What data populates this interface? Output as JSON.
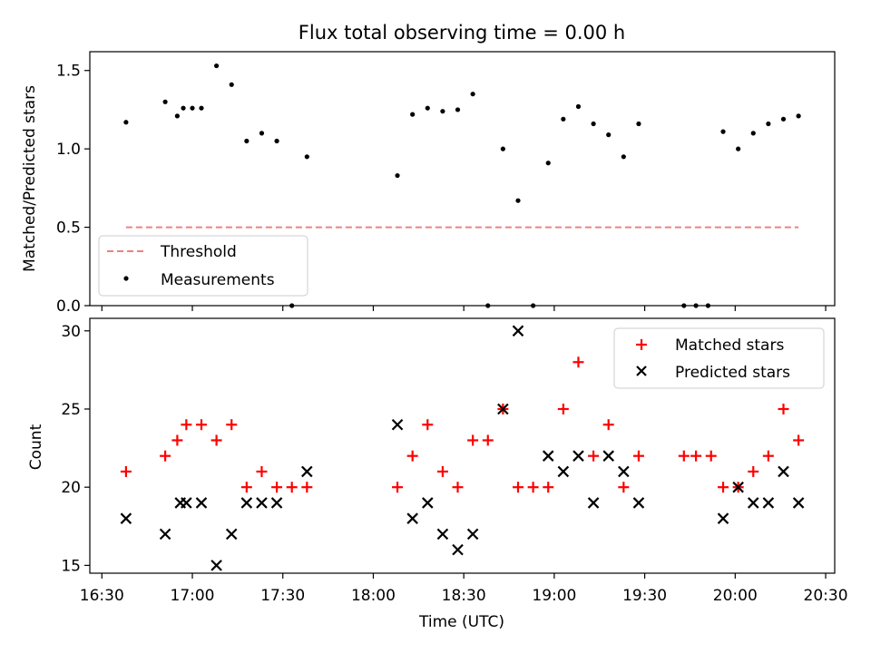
{
  "figure": {
    "title": "Flux total observing time = 0.00 h"
  },
  "colors": {
    "threshold": "#f08080",
    "measurement": "#000000",
    "matched": "#ff0000",
    "predicted": "#000000",
    "axes": "#000000",
    "legend_border": "#cccccc"
  },
  "chart_data": [
    {
      "type": "scatter",
      "title": "Flux total observing time = 0.00 h",
      "xlabel": "",
      "ylabel": "Matched/Predicted stars",
      "xlim": [
        "16:26",
        "20:33"
      ],
      "ylim": [
        0,
        1.62
      ],
      "yticks": [
        0.0,
        0.5,
        1.0,
        1.5
      ],
      "ytick_labels": [
        "0.0",
        "0.5",
        "1.0",
        "1.5"
      ],
      "xticks": [
        "16:30",
        "17:00",
        "17:30",
        "18:00",
        "18:30",
        "19:00",
        "19:30",
        "20:00",
        "20:30"
      ],
      "xtick_labels_visible": false,
      "grid": false,
      "legend_position": "lower-left",
      "series": [
        {
          "name": "Threshold",
          "style": "dashed-line",
          "x": [
            "16:38",
            "20:21"
          ],
          "y": [
            0.5,
            0.5
          ]
        },
        {
          "name": "Measurements",
          "style": "dot",
          "x": [
            "16:38",
            "16:51",
            "16:55",
            "16:57",
            "17:00",
            "17:03",
            "17:08",
            "17:13",
            "17:18",
            "17:23",
            "17:28",
            "17:33",
            "17:38",
            "18:08",
            "18:13",
            "18:18",
            "18:23",
            "18:28",
            "18:33",
            "18:38",
            "18:43",
            "18:48",
            "18:53",
            "18:58",
            "19:03",
            "19:08",
            "19:13",
            "19:18",
            "19:23",
            "19:28",
            "19:43",
            "19:47",
            "19:51",
            "19:56",
            "20:01",
            "20:06",
            "20:11",
            "20:16",
            "20:21"
          ],
          "y": [
            1.17,
            1.3,
            1.21,
            1.26,
            1.26,
            1.26,
            1.53,
            1.41,
            1.05,
            1.1,
            1.05,
            0.0,
            0.95,
            0.83,
            1.22,
            1.26,
            1.24,
            1.25,
            1.35,
            0.0,
            1.0,
            0.67,
            0.0,
            0.91,
            1.19,
            1.27,
            1.16,
            1.09,
            0.95,
            1.16,
            0.0,
            0.0,
            0.0,
            1.11,
            1.0,
            1.1,
            1.16,
            1.19,
            1.21
          ]
        }
      ]
    },
    {
      "type": "scatter",
      "title": "",
      "xlabel": "Time (UTC)",
      "ylabel": "Count",
      "xlim": [
        "16:26",
        "20:33"
      ],
      "ylim": [
        14.5,
        30.8
      ],
      "yticks": [
        15,
        20,
        25,
        30
      ],
      "ytick_labels": [
        "15",
        "20",
        "25",
        "30"
      ],
      "xticks": [
        "16:30",
        "17:00",
        "17:30",
        "18:00",
        "18:30",
        "19:00",
        "19:30",
        "20:00",
        "20:30"
      ],
      "xtick_labels": [
        "16:30",
        "17:00",
        "17:30",
        "18:00",
        "18:30",
        "19:00",
        "19:30",
        "20:00",
        "20:30"
      ],
      "grid": false,
      "legend_position": "upper-right",
      "series": [
        {
          "name": "Matched stars",
          "style": "plus",
          "x": [
            "16:38",
            "16:51",
            "16:55",
            "16:58",
            "17:03",
            "17:08",
            "17:13",
            "17:18",
            "17:23",
            "17:28",
            "17:33",
            "17:38",
            "18:08",
            "18:13",
            "18:18",
            "18:23",
            "18:28",
            "18:33",
            "18:38",
            "18:43",
            "18:48",
            "18:53",
            "18:58",
            "19:03",
            "19:08",
            "19:13",
            "19:18",
            "19:23",
            "19:28",
            "19:43",
            "19:47",
            "19:52",
            "19:56",
            "20:01",
            "20:06",
            "20:11",
            "20:16",
            "20:21"
          ],
          "y": [
            21,
            22,
            23,
            24,
            24,
            23,
            24,
            20,
            21,
            20,
            20,
            20,
            20,
            22,
            24,
            21,
            20,
            23,
            23,
            25,
            20,
            20,
            20,
            25,
            28,
            22,
            24,
            20,
            22,
            22,
            22,
            22,
            20,
            20,
            21,
            22,
            25,
            23
          ]
        },
        {
          "name": "Predicted stars",
          "style": "x",
          "x": [
            "16:38",
            "16:51",
            "16:56",
            "16:58",
            "17:03",
            "17:08",
            "17:13",
            "17:18",
            "17:23",
            "17:28",
            "17:38",
            "18:08",
            "18:13",
            "18:18",
            "18:23",
            "18:28",
            "18:33",
            "18:43",
            "18:48",
            "18:58",
            "19:03",
            "19:08",
            "19:13",
            "19:18",
            "19:23",
            "19:28",
            "19:56",
            "20:01",
            "20:06",
            "20:11",
            "20:16",
            "20:21"
          ],
          "y": [
            18,
            17,
            19,
            19,
            19,
            15,
            17,
            19,
            19,
            19,
            21,
            24,
            18,
            19,
            17,
            16,
            17,
            25,
            30,
            22,
            21,
            22,
            19,
            22,
            21,
            19,
            18,
            20,
            19,
            19,
            21,
            19
          ]
        }
      ]
    }
  ]
}
